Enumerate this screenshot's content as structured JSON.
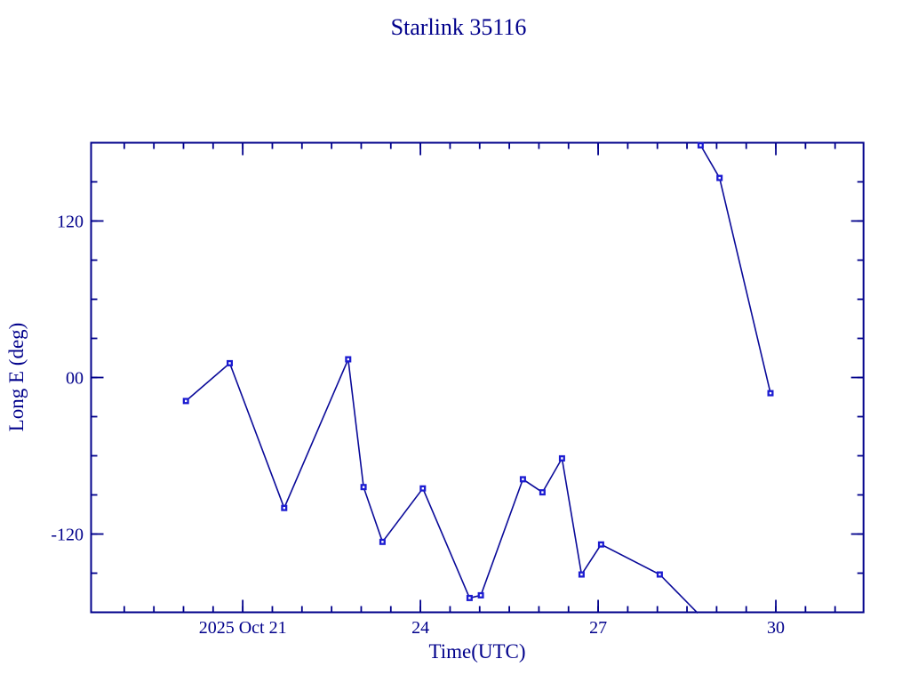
{
  "page": {
    "background": "#ffffff"
  },
  "chart_data": {
    "type": "line",
    "title": "Starlink 35116",
    "xlabel": "Time(UTC)",
    "ylabel": "Long E (deg)",
    "grid": false,
    "legend": null,
    "x_axis": {
      "unit": "day of October 2025 (UTC)",
      "lim": [
        18.44,
        31.48
      ],
      "major_ticks": [
        {
          "value": 21,
          "label": "2025 Oct 21"
        },
        {
          "value": 24,
          "label": "24"
        },
        {
          "value": 27,
          "label": "27"
        },
        {
          "value": 30,
          "label": "30"
        }
      ],
      "minor_tick_step": 0.5,
      "minor_tick_range": [
        19.0,
        31.0
      ]
    },
    "y_axis": {
      "lim": [
        -180,
        180
      ],
      "major_ticks": [
        {
          "value": 120,
          "label": "120"
        },
        {
          "value": 0,
          "label": "00"
        },
        {
          "value": -120,
          "label": "-120"
        }
      ],
      "minor_tick_step": 30,
      "minor_tick_range": [
        -150,
        150
      ]
    },
    "series": [
      {
        "name": "sub-satellite longitude",
        "marker": "open-square",
        "points": [
          [
            20.04,
            -18
          ],
          [
            20.78,
            11
          ],
          [
            21.7,
            -100
          ],
          [
            22.78,
            14
          ],
          [
            23.04,
            -84
          ],
          [
            23.36,
            -126
          ],
          [
            24.04,
            -85
          ],
          [
            24.83,
            -169
          ],
          [
            25.02,
            -167
          ],
          [
            25.73,
            -78
          ],
          [
            26.06,
            -88
          ],
          [
            26.39,
            -62
          ],
          [
            26.72,
            -151
          ],
          [
            27.05,
            -128
          ],
          [
            28.04,
            -151
          ],
          [
            28.73,
            178
          ],
          [
            29.05,
            153
          ],
          [
            29.91,
            -12
          ]
        ],
        "break_after_index": 14,
        "break_exit_point": [
          28.68,
          -180.6
        ]
      }
    ],
    "colors": {
      "axis": "#00008b",
      "text": "#00008b",
      "line": "#0a0a99",
      "marker": "#1b1bd1",
      "marker_center": "#ffffff",
      "background": "#ffffff"
    }
  }
}
